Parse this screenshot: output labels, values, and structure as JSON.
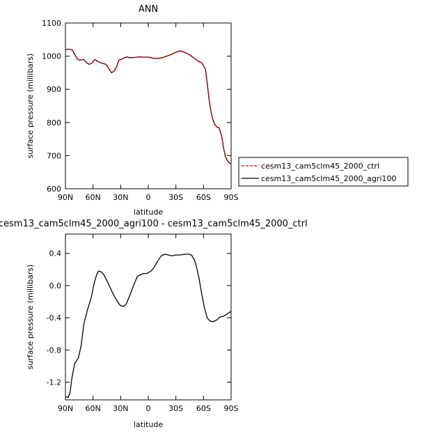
{
  "chart_data": [
    {
      "type": "line",
      "title": "ANN",
      "xlabel": "latitude",
      "ylabel": "surface pressure (millibars)",
      "xlim": [
        90,
        -90
      ],
      "ylim": [
        600,
        1100
      ],
      "x_tick_values": [
        90,
        60,
        30,
        0,
        -30,
        -60,
        -90
      ],
      "x_tick_labels": [
        "90N",
        "60N",
        "30N",
        "0",
        "30S",
        "60S",
        "90S"
      ],
      "y_ticks": [
        600,
        700,
        800,
        900,
        1000,
        1100
      ],
      "legend_position": "right",
      "x": [
        90,
        85,
        82,
        80,
        77,
        75,
        70,
        67,
        64,
        61,
        58,
        55,
        52,
        49,
        46,
        43,
        40,
        37,
        34,
        32,
        30,
        28,
        26,
        23,
        20,
        15,
        10,
        5,
        0,
        -5,
        -10,
        -15,
        -20,
        -25,
        -30,
        -35,
        -38,
        -42,
        -46,
        -50,
        -54,
        -58,
        -62,
        -64,
        -66,
        -68,
        -70,
        -72,
        -75,
        -77,
        -78,
        -80,
        -82,
        -84,
        -86,
        -88,
        -90
      ],
      "series": [
        {
          "name": "cesm13_cam5clm45_2000_ctrl",
          "color": "#cc0000",
          "dash": "dashed",
          "values": [
            1020,
            1021,
            1017,
            1005,
            992,
            988,
            990,
            980,
            975,
            980,
            990,
            984,
            980,
            978,
            975,
            963,
            950,
            955,
            970,
            988,
            990,
            992,
            995,
            998,
            995,
            996,
            998,
            997,
            997,
            994,
            993,
            995,
            1000,
            1005,
            1012,
            1016,
            1013,
            1008,
            1002,
            993,
            985,
            980,
            962,
            920,
            870,
            835,
            810,
            795,
            785,
            784,
            775,
            755,
            720,
            695,
            685,
            678,
            675
          ]
        },
        {
          "name": "cesm13_cam5clm45_2000_agri100",
          "color": "#000000",
          "dash": "solid",
          "values": [
            1020,
            1021,
            1017,
            1005,
            992,
            988,
            990,
            980,
            975,
            980,
            990,
            984,
            980,
            978,
            975,
            963,
            950,
            955,
            970,
            988,
            990,
            992,
            995,
            998,
            995,
            996,
            998,
            997,
            997,
            994,
            993,
            995,
            1000,
            1005,
            1012,
            1016,
            1013,
            1008,
            1002,
            993,
            985,
            980,
            962,
            920,
            870,
            835,
            810,
            795,
            785,
            784,
            775,
            755,
            720,
            695,
            685,
            678,
            675
          ]
        }
      ]
    },
    {
      "type": "line",
      "title": "cesm13_cam5clm45_2000_agri100 - cesm13_cam5clm45_2000_ctrl",
      "xlabel": "latitude",
      "ylabel": "surface pressure (millibars)",
      "xlim": [
        90,
        -90
      ],
      "ylim": [
        -1.42,
        0.64
      ],
      "x_tick_values": [
        90,
        60,
        30,
        0,
        -30,
        -60,
        -90
      ],
      "x_tick_labels": [
        "90N",
        "60N",
        "30N",
        "0",
        "30S",
        "60S",
        "90S"
      ],
      "y_ticks": [
        -1.2,
        -0.8,
        -0.4,
        0.0,
        0.4
      ],
      "y_tick_labels": [
        "-1.2",
        "-0.8",
        "-0.4",
        "0.0",
        "0.4"
      ],
      "x": [
        90,
        87,
        85,
        83,
        80,
        76,
        73,
        70,
        66,
        62,
        59,
        56,
        54,
        51,
        48,
        44,
        40,
        36,
        33,
        30,
        27,
        24,
        20,
        16,
        12,
        8,
        5,
        2,
        0,
        -3,
        -6,
        -10,
        -14,
        -18,
        -22,
        -26,
        -30,
        -35,
        -40,
        -44,
        -47,
        -50,
        -52,
        -55,
        -58,
        -61,
        -64,
        -67,
        -70,
        -74,
        -78,
        -82,
        -86,
        -90
      ],
      "series": [
        {
          "name": "",
          "color": "#000000",
          "dash": "solid",
          "values": [
            -1.38,
            -1.39,
            -1.33,
            -1.15,
            -0.97,
            -0.9,
            -0.75,
            -0.48,
            -0.3,
            -0.15,
            0.02,
            0.14,
            0.18,
            0.17,
            0.13,
            0.04,
            -0.06,
            -0.15,
            -0.21,
            -0.25,
            -0.26,
            -0.23,
            -0.12,
            0.0,
            0.11,
            0.14,
            0.15,
            0.15,
            0.16,
            0.18,
            0.22,
            0.3,
            0.37,
            0.39,
            0.38,
            0.37,
            0.38,
            0.38,
            0.39,
            0.39,
            0.38,
            0.32,
            0.25,
            0.1,
            -0.1,
            -0.28,
            -0.4,
            -0.44,
            -0.45,
            -0.43,
            -0.39,
            -0.38,
            -0.35,
            -0.32
          ]
        }
      ]
    }
  ]
}
